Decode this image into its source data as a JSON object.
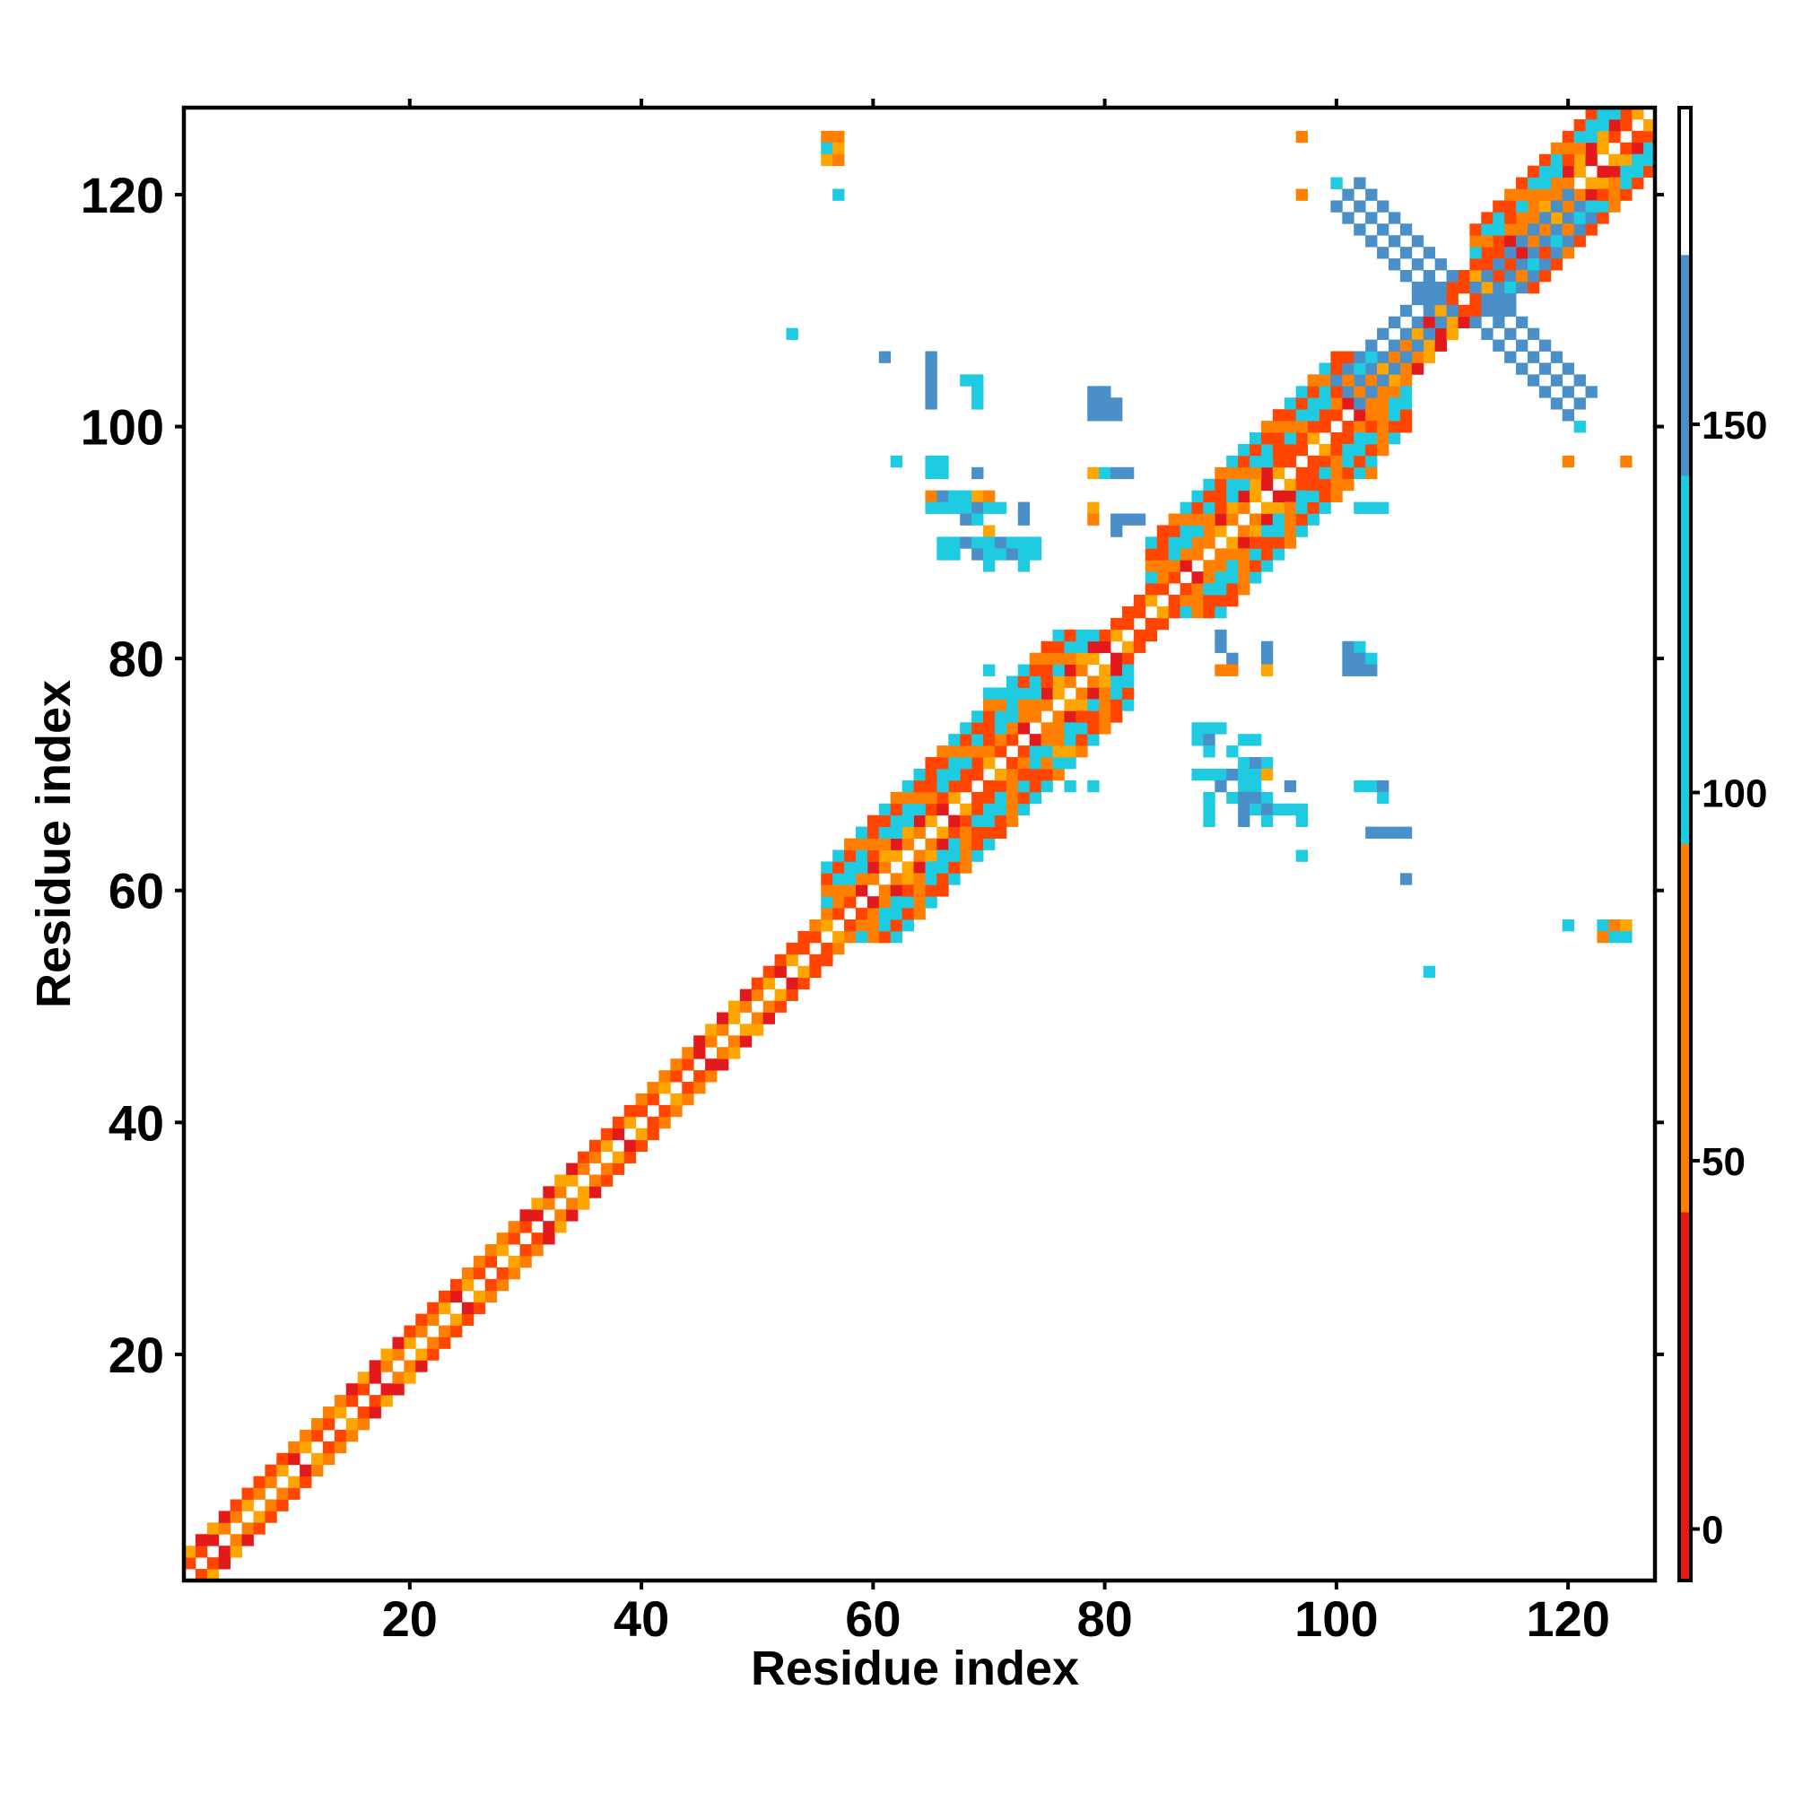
{
  "chart_data": {
    "type": "heatmap",
    "xlabel": "Residue index",
    "ylabel": "Residue index",
    "xlim": [
      0.5,
      127.5
    ],
    "ylim": [
      0.5,
      127.5
    ],
    "x_ticks": [
      20,
      40,
      60,
      80,
      100,
      120
    ],
    "y_ticks": [
      20,
      40,
      60,
      80,
      100,
      120
    ],
    "colorbar": {
      "ticks": [
        0,
        50,
        100,
        150
      ],
      "range": [
        -7,
        193
      ],
      "bands": [
        {
          "from": -7,
          "to": 43,
          "color": "#e31a1c"
        },
        {
          "from": 43,
          "to": 93,
          "color": "#ff7f00"
        },
        {
          "from": 93,
          "to": 143,
          "color": "#1ecbe1"
        },
        {
          "from": 143,
          "to": 173,
          "color": "#4a8fc8"
        },
        {
          "from": 173,
          "to": 193,
          "color": "#ffffff"
        }
      ]
    },
    "palette": {
      "red": "#e31a1c",
      "redorange": "#ff4500",
      "orange": "#ff7f00",
      "amber": "#ffa500",
      "cyan": "#1ecbe1",
      "steelblue": "#4a8fc8"
    },
    "diagonal_pattern": {
      "description_free": true,
      "offset1_colors": [
        "amber",
        "orange",
        "redorange",
        "red",
        "orange",
        "redorange",
        "amber",
        "red"
      ],
      "offset2_colors": [
        "red",
        "redorange",
        "orange",
        "amber",
        "redorange",
        "orange"
      ]
    },
    "helix_blocks": [
      {
        "from": 56,
        "to": 80,
        "offset_min": 3,
        "offset_max": 6,
        "color": "cyan"
      },
      {
        "from": 84,
        "to": 104,
        "offset_min": 3,
        "offset_max": 6,
        "color": "cyan"
      },
      {
        "from": 112,
        "to": 127,
        "offset_min": 3,
        "offset_max": 5,
        "color": "cyan"
      }
    ],
    "cells": [
      [
        56,
        125,
        "orange"
      ],
      [
        57,
        125,
        "orange"
      ],
      [
        56,
        124,
        "cyan"
      ],
      [
        57,
        124,
        "amber"
      ],
      [
        56,
        123,
        "amber"
      ],
      [
        57,
        123,
        "orange"
      ],
      [
        57,
        120,
        "cyan"
      ],
      [
        97,
        125,
        "orange"
      ],
      [
        97,
        120,
        "orange"
      ],
      [
        100,
        121,
        "cyan"
      ],
      [
        53,
        108,
        "cyan"
      ],
      [
        61,
        106,
        "steelblue"
      ],
      [
        65,
        106,
        "steelblue"
      ],
      [
        65,
        105,
        "steelblue"
      ],
      [
        65,
        104,
        "steelblue"
      ],
      [
        65,
        103,
        "steelblue"
      ],
      [
        68,
        104,
        "cyan"
      ],
      [
        69,
        104,
        "cyan"
      ],
      [
        69,
        103,
        "cyan"
      ],
      [
        69,
        102,
        "cyan"
      ],
      [
        65,
        102,
        "steelblue"
      ],
      [
        79,
        103,
        "steelblue"
      ],
      [
        80,
        103,
        "steelblue"
      ],
      [
        79,
        102,
        "steelblue"
      ],
      [
        80,
        102,
        "steelblue"
      ],
      [
        81,
        102,
        "steelblue"
      ],
      [
        79,
        101,
        "steelblue"
      ],
      [
        80,
        101,
        "steelblue"
      ],
      [
        81,
        101,
        "steelblue"
      ],
      [
        62,
        97,
        "cyan"
      ],
      [
        65,
        97,
        "cyan"
      ],
      [
        66,
        97,
        "cyan"
      ],
      [
        65,
        96,
        "cyan"
      ],
      [
        66,
        96,
        "cyan"
      ],
      [
        69,
        96,
        "steelblue"
      ],
      [
        65,
        94,
        "orange"
      ],
      [
        66,
        94,
        "steelblue"
      ],
      [
        67,
        94,
        "cyan"
      ],
      [
        68,
        94,
        "cyan"
      ],
      [
        69,
        94,
        "amber"
      ],
      [
        70,
        94,
        "orange"
      ],
      [
        65,
        93,
        "cyan"
      ],
      [
        66,
        93,
        "cyan"
      ],
      [
        67,
        93,
        "cyan"
      ],
      [
        68,
        93,
        "cyan"
      ],
      [
        69,
        93,
        "steelblue"
      ],
      [
        70,
        93,
        "cyan"
      ],
      [
        71,
        93,
        "cyan"
      ],
      [
        73,
        93,
        "steelblue"
      ],
      [
        68,
        92,
        "steelblue"
      ],
      [
        69,
        92,
        "cyan"
      ],
      [
        73,
        92,
        "steelblue"
      ],
      [
        70,
        91,
        "amber"
      ],
      [
        66,
        90,
        "cyan"
      ],
      [
        67,
        90,
        "cyan"
      ],
      [
        68,
        90,
        "steelblue"
      ],
      [
        69,
        90,
        "cyan"
      ],
      [
        70,
        90,
        "cyan"
      ],
      [
        71,
        90,
        "steelblue"
      ],
      [
        72,
        90,
        "cyan"
      ],
      [
        73,
        90,
        "cyan"
      ],
      [
        74,
        90,
        "cyan"
      ],
      [
        66,
        89,
        "cyan"
      ],
      [
        67,
        89,
        "cyan"
      ],
      [
        69,
        89,
        "steelblue"
      ],
      [
        70,
        89,
        "cyan"
      ],
      [
        71,
        89,
        "cyan"
      ],
      [
        72,
        89,
        "steelblue"
      ],
      [
        73,
        89,
        "cyan"
      ],
      [
        74,
        89,
        "cyan"
      ],
      [
        70,
        88,
        "cyan"
      ],
      [
        73,
        88,
        "cyan"
      ],
      [
        79,
        96,
        "amber"
      ],
      [
        80,
        96,
        "cyan"
      ],
      [
        81,
        96,
        "steelblue"
      ],
      [
        82,
        96,
        "steelblue"
      ],
      [
        79,
        93,
        "amber"
      ],
      [
        79,
        92,
        "orange"
      ],
      [
        81,
        92,
        "steelblue"
      ],
      [
        82,
        92,
        "steelblue"
      ],
      [
        83,
        92,
        "steelblue"
      ],
      [
        81,
        91,
        "steelblue"
      ],
      [
        103,
        96,
        "orange"
      ],
      [
        102,
        96,
        "cyan"
      ],
      [
        103,
        93,
        "cyan"
      ],
      [
        102,
        93,
        "cyan"
      ],
      [
        104,
        93,
        "cyan"
      ],
      [
        101,
        95,
        "orange"
      ],
      [
        90,
        82,
        "steelblue"
      ],
      [
        90,
        81,
        "steelblue"
      ],
      [
        91,
        80,
        "steelblue"
      ],
      [
        94,
        80,
        "steelblue"
      ],
      [
        94,
        81,
        "steelblue"
      ],
      [
        90,
        79,
        "orange"
      ],
      [
        91,
        79,
        "orange"
      ],
      [
        94,
        79,
        "amber"
      ],
      [
        101,
        81,
        "steelblue"
      ],
      [
        102,
        81,
        "cyan"
      ],
      [
        101,
        80,
        "steelblue"
      ],
      [
        102,
        80,
        "steelblue"
      ],
      [
        103,
        80,
        "cyan"
      ],
      [
        101,
        79,
        "steelblue"
      ],
      [
        102,
        79,
        "steelblue"
      ],
      [
        103,
        79,
        "steelblue"
      ],
      [
        70,
        79,
        "cyan"
      ],
      [
        70,
        77,
        "cyan"
      ],
      [
        72,
        78,
        "cyan"
      ],
      [
        72,
        77,
        "cyan"
      ],
      [
        72,
        76,
        "cyan"
      ],
      [
        74,
        72,
        "cyan"
      ],
      [
        75,
        72,
        "cyan"
      ],
      [
        76,
        72,
        "amber"
      ],
      [
        77,
        72,
        "amber"
      ],
      [
        78,
        72,
        "orange"
      ],
      [
        74,
        71,
        "cyan"
      ],
      [
        75,
        71,
        "orange"
      ],
      [
        76,
        71,
        "cyan"
      ],
      [
        77,
        69,
        "cyan"
      ],
      [
        79,
        69,
        "cyan"
      ],
      [
        88,
        74,
        "cyan"
      ],
      [
        89,
        74,
        "cyan"
      ],
      [
        90,
        74,
        "cyan"
      ],
      [
        92,
        73,
        "cyan"
      ],
      [
        93,
        73,
        "cyan"
      ],
      [
        88,
        73,
        "cyan"
      ],
      [
        89,
        73,
        "steelblue"
      ],
      [
        89,
        72,
        "cyan"
      ],
      [
        91,
        72,
        "cyan"
      ],
      [
        92,
        71,
        "cyan"
      ],
      [
        93,
        71,
        "steelblue"
      ],
      [
        94,
        71,
        "cyan"
      ],
      [
        88,
        70,
        "cyan"
      ],
      [
        89,
        70,
        "cyan"
      ],
      [
        90,
        70,
        "cyan"
      ],
      [
        91,
        70,
        "steelblue"
      ],
      [
        92,
        70,
        "cyan"
      ],
      [
        93,
        70,
        "cyan"
      ],
      [
        94,
        70,
        "amber"
      ],
      [
        90,
        69,
        "steelblue"
      ],
      [
        92,
        69,
        "cyan"
      ],
      [
        93,
        69,
        "cyan"
      ],
      [
        96,
        69,
        "steelblue"
      ],
      [
        89,
        68,
        "cyan"
      ],
      [
        91,
        68,
        "cyan"
      ],
      [
        92,
        68,
        "steelblue"
      ],
      [
        93,
        68,
        "steelblue"
      ],
      [
        94,
        68,
        "cyan"
      ],
      [
        89,
        67,
        "cyan"
      ],
      [
        92,
        67,
        "steelblue"
      ],
      [
        93,
        67,
        "cyan"
      ],
      [
        94,
        67,
        "steelblue"
      ],
      [
        95,
        67,
        "cyan"
      ],
      [
        96,
        67,
        "cyan"
      ],
      [
        97,
        67,
        "cyan"
      ],
      [
        89,
        66,
        "cyan"
      ],
      [
        92,
        66,
        "steelblue"
      ],
      [
        94,
        66,
        "cyan"
      ],
      [
        97,
        66,
        "cyan"
      ],
      [
        102,
        69,
        "cyan"
      ],
      [
        103,
        69,
        "cyan"
      ],
      [
        104,
        69,
        "steelblue"
      ],
      [
        104,
        68,
        "cyan"
      ],
      [
        103,
        65,
        "steelblue"
      ],
      [
        104,
        65,
        "steelblue"
      ],
      [
        105,
        65,
        "steelblue"
      ],
      [
        106,
        65,
        "steelblue"
      ],
      [
        97,
        63,
        "cyan"
      ],
      [
        106,
        61,
        "steelblue"
      ],
      [
        120,
        57,
        "cyan"
      ],
      [
        123,
        57,
        "cyan"
      ],
      [
        124,
        57,
        "orange"
      ],
      [
        125,
        57,
        "amber"
      ],
      [
        123,
        56,
        "orange"
      ],
      [
        124,
        56,
        "cyan"
      ],
      [
        125,
        56,
        "cyan"
      ],
      [
        108,
        53,
        "cyan"
      ],
      [
        121,
        100,
        "cyan"
      ],
      [
        120,
        97,
        "orange"
      ],
      [
        125,
        97,
        "orange"
      ]
    ],
    "x_cross": {
      "center": [
        111,
        111
      ],
      "arm_length": 9,
      "color": "steelblue"
    }
  }
}
